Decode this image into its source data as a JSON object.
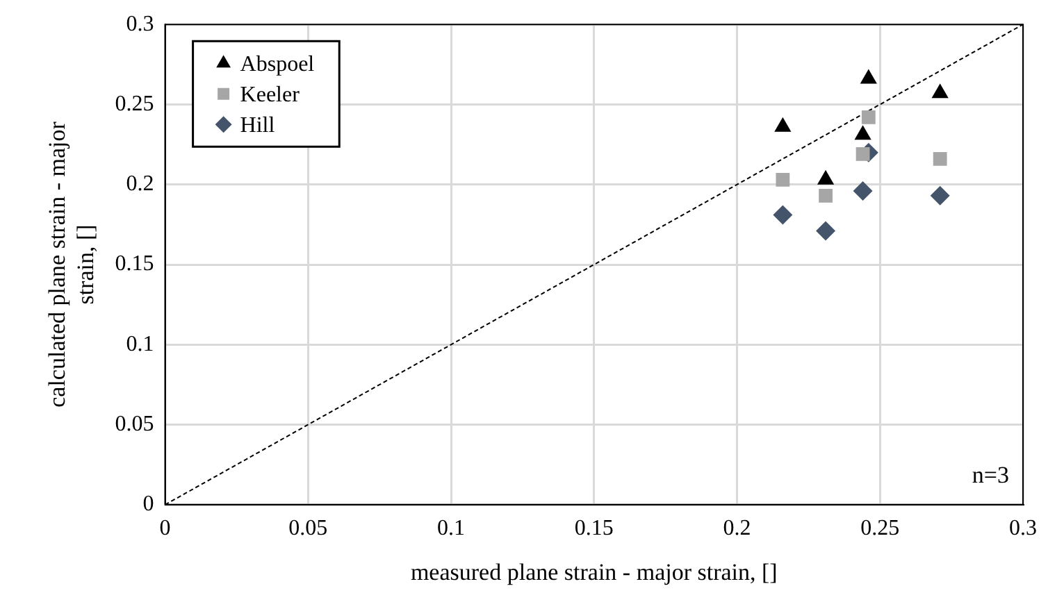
{
  "chart_data": {
    "type": "scatter",
    "xlabel": "measured plane strain - major strain, []",
    "ylabel": "calculated plane strain - major strain, []",
    "xlim": [
      0,
      0.3
    ],
    "ylim": [
      0,
      0.3
    ],
    "xticks": [
      0,
      0.05,
      0.1,
      0.15,
      0.2,
      0.25,
      0.3
    ],
    "yticks": [
      0,
      0.05,
      0.1,
      0.15,
      0.2,
      0.25,
      0.3
    ],
    "grid": true,
    "legend": "top left",
    "annotations": [
      "n=3"
    ],
    "series": [
      {
        "name": "Abspoel",
        "color": "#000000",
        "marker": "triangle",
        "x": [
          0.216,
          0.231,
          0.244,
          0.246,
          0.271
        ],
        "values": [
          0.236,
          0.203,
          0.231,
          0.266,
          0.257
        ]
      },
      {
        "name": "Keeler",
        "color": "#a6a6a6",
        "marker": "square",
        "x": [
          0.216,
          0.231,
          0.244,
          0.246,
          0.271
        ],
        "values": [
          0.203,
          0.193,
          0.219,
          0.242,
          0.216
        ]
      },
      {
        "name": "Hill",
        "color": "#44546a",
        "marker": "diamond",
        "x": [
          0.216,
          0.231,
          0.244,
          0.246,
          0.271
        ],
        "values": [
          0.181,
          0.171,
          0.196,
          0.22,
          0.193
        ]
      },
      {
        "type": "line",
        "color": "#000000",
        "marker": "none",
        "line_style": "dashed",
        "x": [
          0,
          0.3
        ],
        "values": [
          0,
          0.3
        ]
      }
    ]
  }
}
